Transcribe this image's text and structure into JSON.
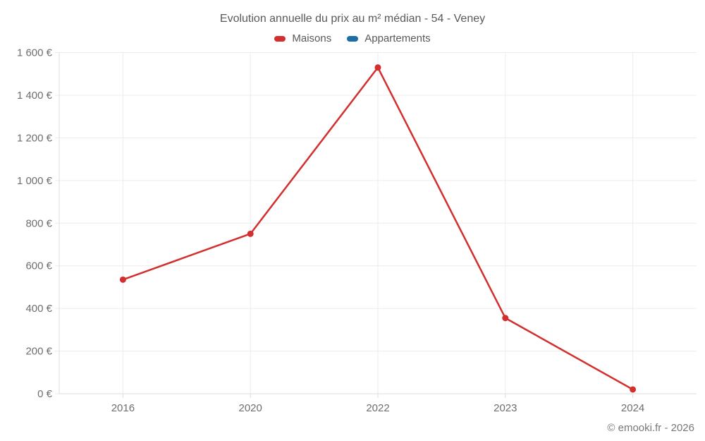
{
  "title": "Evolution annuelle du prix au m² médian - 54 - Veney",
  "footer": "© emooki.fr - 2026",
  "colors": {
    "maisons": "#d32f2f",
    "appartements": "#1c6ea4",
    "grid": "#ececec",
    "axis": "#dcdcdc",
    "tick_text": "#6e6e6e",
    "title_text": "#595959",
    "background": "#ffffff"
  },
  "chart_data": {
    "type": "line",
    "title": "Evolution annuelle du prix au m² médian - 54 - Veney",
    "categories": [
      "2016",
      "2020",
      "2022",
      "2023",
      "2024"
    ],
    "series": [
      {
        "name": "Maisons",
        "color": "#d32f2f",
        "values": [
          535,
          750,
          1530,
          355,
          20
        ]
      },
      {
        "name": "Appartements",
        "color": "#1c6ea4",
        "values": []
      }
    ],
    "xlabel": "",
    "ylabel": "",
    "ylim": [
      0,
      1600
    ],
    "ytick_step": 200,
    "ytick_suffix": " €",
    "grid": true,
    "legend_position": "top",
    "marker_radius": 4.5,
    "line_width": 2.5
  }
}
